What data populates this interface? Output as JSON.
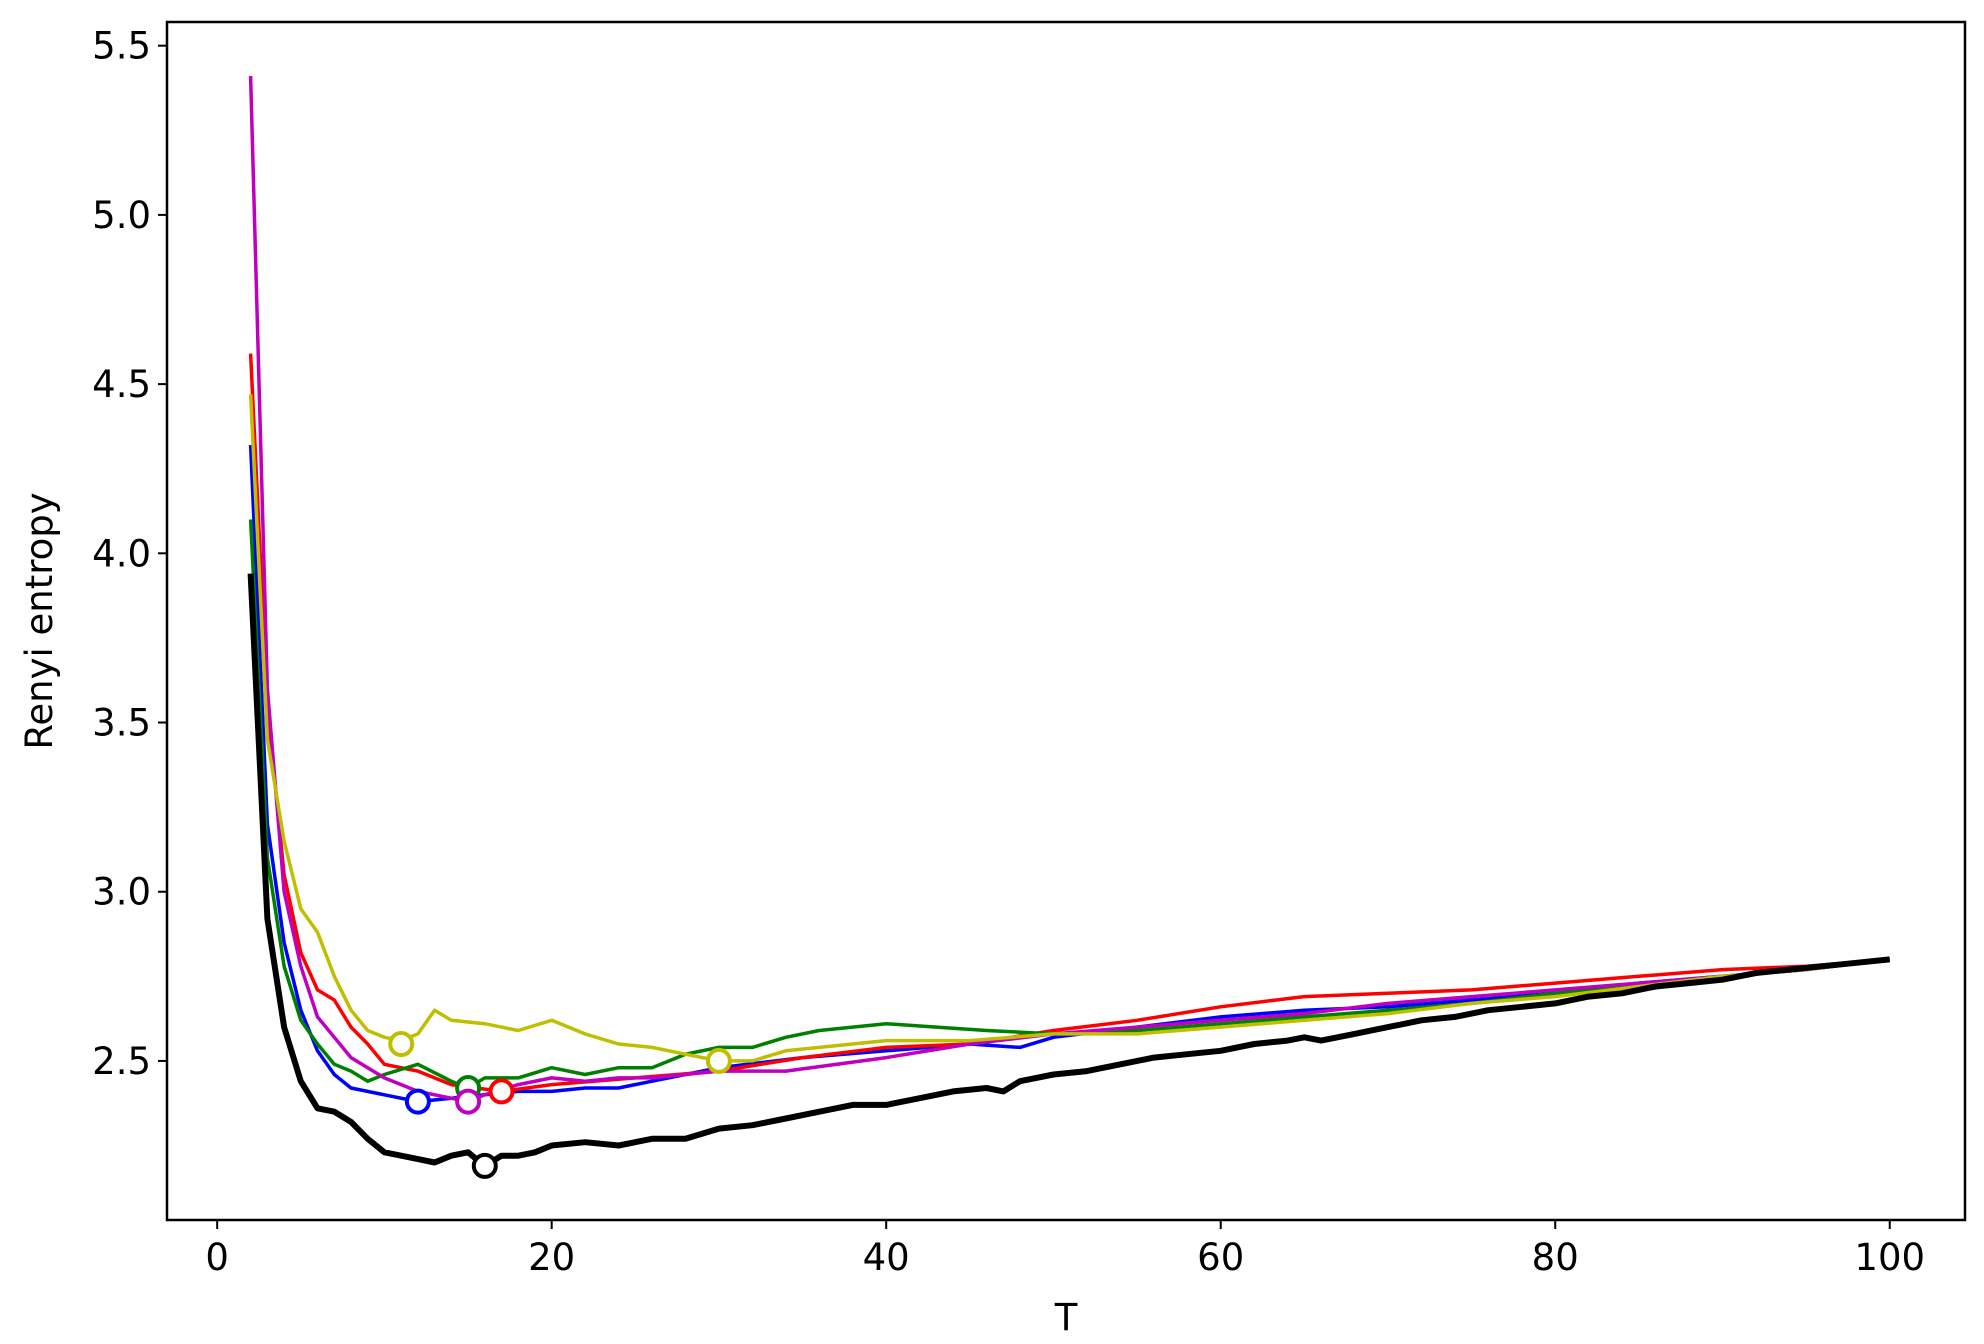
{
  "chart_data": {
    "type": "line",
    "title": "",
    "xlabel": "T",
    "ylabel": "Renyi entropy",
    "xlim": [
      -3,
      104.5
    ],
    "ylim": [
      2.03,
      5.57
    ],
    "xticks": [
      0,
      20,
      40,
      60,
      80,
      100
    ],
    "yticks": [
      2.5,
      3.0,
      3.5,
      4.0,
      4.5,
      5.0,
      5.5
    ],
    "xtick_labels": [
      "0",
      "20",
      "40",
      "60",
      "80",
      "100"
    ],
    "ytick_labels": [
      "2.5",
      "3.0",
      "3.5",
      "4.0",
      "4.5",
      "5.0",
      "5.5"
    ],
    "grid": false,
    "legend": "none",
    "series": [
      {
        "color": "#0000ff",
        "x": [
          2,
          3,
          4,
          5,
          6,
          7,
          8,
          10,
          12,
          14,
          16,
          18,
          20,
          22,
          24,
          26,
          28,
          30,
          35,
          40,
          45,
          48,
          50,
          55,
          60,
          65,
          70,
          75,
          80,
          85,
          90,
          95,
          100
        ],
        "y": [
          4.32,
          3.2,
          2.85,
          2.65,
          2.53,
          2.46,
          2.42,
          2.4,
          2.38,
          2.39,
          2.4,
          2.41,
          2.41,
          2.42,
          2.42,
          2.44,
          2.46,
          2.48,
          2.51,
          2.53,
          2.55,
          2.54,
          2.57,
          2.6,
          2.63,
          2.65,
          2.66,
          2.68,
          2.7,
          2.73,
          2.75,
          2.77,
          2.8
        ],
        "min_marker": [
          12,
          2.38
        ]
      },
      {
        "color": "#ff0000",
        "x": [
          2,
          3,
          4,
          5,
          6,
          7,
          8,
          9,
          10,
          12,
          14,
          17,
          20,
          25,
          30,
          35,
          40,
          45,
          50,
          55,
          60,
          65,
          70,
          75,
          80,
          85,
          90,
          95,
          100
        ],
        "y": [
          4.59,
          3.55,
          3.05,
          2.82,
          2.71,
          2.68,
          2.6,
          2.55,
          2.49,
          2.47,
          2.43,
          2.41,
          2.43,
          2.45,
          2.47,
          2.51,
          2.54,
          2.55,
          2.59,
          2.62,
          2.66,
          2.69,
          2.7,
          2.71,
          2.73,
          2.75,
          2.77,
          2.78,
          2.8
        ],
        "min_marker": [
          17,
          2.41
        ]
      },
      {
        "color": "#008000",
        "x": [
          2,
          3,
          4,
          5,
          6,
          7,
          8,
          9,
          10,
          12,
          14,
          15,
          16,
          18,
          20,
          22,
          24,
          26,
          28,
          30,
          32,
          34,
          36,
          38,
          40,
          43,
          46,
          50,
          55,
          60,
          65,
          70,
          75,
          80,
          85,
          90,
          95,
          100
        ],
        "y": [
          4.1,
          3.1,
          2.78,
          2.62,
          2.55,
          2.49,
          2.47,
          2.44,
          2.46,
          2.49,
          2.44,
          2.42,
          2.45,
          2.45,
          2.48,
          2.46,
          2.48,
          2.48,
          2.52,
          2.54,
          2.54,
          2.57,
          2.59,
          2.6,
          2.61,
          2.6,
          2.59,
          2.58,
          2.59,
          2.61,
          2.63,
          2.65,
          2.67,
          2.7,
          2.72,
          2.75,
          2.77,
          2.8
        ],
        "min_marker": [
          15,
          2.42
        ]
      },
      {
        "color": "#c000c0",
        "x": [
          2,
          3,
          4,
          5,
          6,
          7,
          8,
          10,
          12,
          14,
          15,
          16,
          18,
          20,
          22,
          24,
          26,
          28,
          30,
          34,
          40,
          45,
          50,
          55,
          60,
          65,
          70,
          75,
          80,
          85,
          90,
          95,
          100
        ],
        "y": [
          5.41,
          3.6,
          3.0,
          2.78,
          2.63,
          2.57,
          2.51,
          2.45,
          2.41,
          2.39,
          2.38,
          2.4,
          2.43,
          2.45,
          2.44,
          2.45,
          2.45,
          2.46,
          2.47,
          2.47,
          2.51,
          2.55,
          2.58,
          2.6,
          2.62,
          2.64,
          2.67,
          2.69,
          2.71,
          2.73,
          2.75,
          2.77,
          2.8
        ],
        "min_marker": [
          15,
          2.38
        ]
      },
      {
        "color": "#bfbf00",
        "x": [
          2,
          3,
          4,
          5,
          6,
          7,
          8,
          9,
          10,
          11,
          12,
          13,
          14,
          16,
          18,
          20,
          22,
          24,
          26,
          28,
          30,
          32,
          34,
          36,
          38,
          40,
          45,
          50,
          55,
          60,
          65,
          70,
          75,
          80,
          85,
          90,
          95,
          100
        ],
        "y": [
          4.47,
          3.45,
          3.15,
          2.95,
          2.88,
          2.75,
          2.65,
          2.59,
          2.57,
          2.56,
          2.58,
          2.65,
          2.62,
          2.61,
          2.59,
          2.62,
          2.58,
          2.55,
          2.54,
          2.52,
          2.5,
          2.5,
          2.53,
          2.54,
          2.55,
          2.56,
          2.56,
          2.58,
          2.58,
          2.6,
          2.62,
          2.64,
          2.67,
          2.69,
          2.72,
          2.75,
          2.77,
          2.8
        ],
        "min_marker": [
          30,
          2.5
        ],
        "extra_marker": [
          11,
          2.55
        ]
      },
      {
        "color": "#000000",
        "width": 6,
        "x": [
          2,
          3,
          4,
          5,
          6,
          7,
          8,
          9,
          10,
          11,
          12,
          13,
          14,
          15,
          16,
          17,
          18,
          19,
          20,
          22,
          24,
          26,
          28,
          30,
          32,
          34,
          36,
          38,
          40,
          42,
          44,
          46,
          47,
          48,
          50,
          52,
          54,
          56,
          58,
          60,
          62,
          64,
          65,
          66,
          68,
          70,
          72,
          74,
          76,
          78,
          80,
          82,
          84,
          86,
          88,
          90,
          92,
          94,
          96,
          98,
          100
        ],
        "y": [
          3.94,
          2.92,
          2.6,
          2.44,
          2.36,
          2.35,
          2.32,
          2.27,
          2.23,
          2.22,
          2.21,
          2.2,
          2.22,
          2.23,
          2.19,
          2.22,
          2.22,
          2.23,
          2.25,
          2.26,
          2.25,
          2.27,
          2.27,
          2.3,
          2.31,
          2.33,
          2.35,
          2.37,
          2.37,
          2.39,
          2.41,
          2.42,
          2.41,
          2.44,
          2.46,
          2.47,
          2.49,
          2.51,
          2.52,
          2.53,
          2.55,
          2.56,
          2.57,
          2.56,
          2.58,
          2.6,
          2.62,
          2.63,
          2.65,
          2.66,
          2.67,
          2.69,
          2.7,
          2.72,
          2.73,
          2.74,
          2.76,
          2.77,
          2.78,
          2.79,
          2.8
        ],
        "min_marker": [
          16,
          2.19
        ]
      }
    ]
  }
}
